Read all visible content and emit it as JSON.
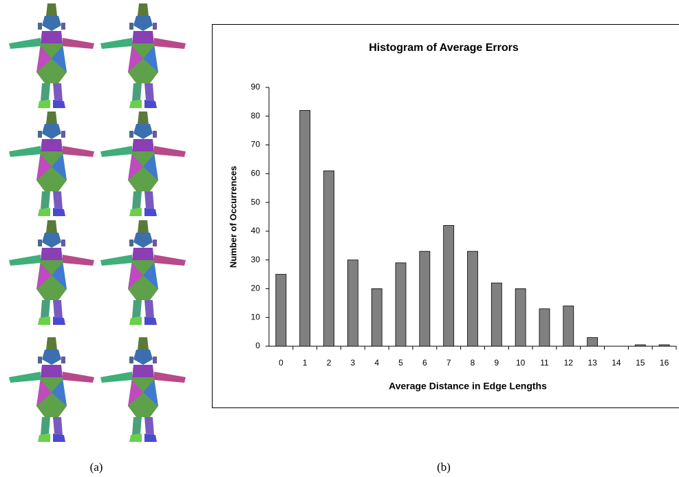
{
  "chart_data": {
    "type": "bar",
    "title": "Histogram of Average Errors",
    "x_label": "Average Distance in Edge Lengths",
    "y_label": "Number of Occurrences",
    "categories": [
      "0",
      "1",
      "2",
      "3",
      "4",
      "5",
      "6",
      "7",
      "8",
      "9",
      "10",
      "11",
      "12",
      "13",
      "14",
      "15",
      "16"
    ],
    "values": [
      25,
      82,
      61,
      30,
      20,
      29,
      33,
      42,
      33,
      22,
      20,
      13,
      14,
      3,
      0,
      0.5,
      0.5
    ],
    "color": "#808080",
    "ylim": [
      0,
      90
    ],
    "yticks": [
      0,
      10,
      20,
      30,
      40,
      50,
      60,
      70,
      80,
      90
    ],
    "grid": false
  },
  "panel_labels": [
    "(a)",
    "(b)"
  ]
}
